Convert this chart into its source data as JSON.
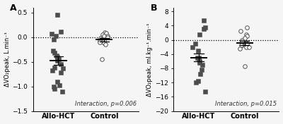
{
  "panel_A": {
    "label": "A",
    "ylabel": "ΔVO₂peak, L.min⁻¹",
    "allo_hct": [
      0.45,
      0.12,
      0.07,
      0.02,
      -0.05,
      -0.27,
      -0.32,
      -0.38,
      -0.4,
      -0.45,
      -0.48,
      -0.55,
      -0.62,
      -0.63,
      -0.68,
      -0.72,
      -0.9,
      -0.97,
      -1.0,
      -1.05,
      -1.1
    ],
    "control": [
      0.1,
      0.08,
      0.05,
      0.03,
      0.02,
      0.0,
      -0.02,
      -0.05,
      -0.07,
      -0.08,
      -0.1,
      -0.12,
      -0.15,
      -0.45
    ],
    "allo_mean": -0.47,
    "allo_sem": 0.085,
    "ctrl_mean": -0.05,
    "ctrl_sem": 0.035,
    "ylim": [
      -1.5,
      0.6
    ],
    "yticks": [
      -1.5,
      -1.0,
      -0.5,
      0.0,
      0.5
    ],
    "interaction_text": "Interaction, p=0.006",
    "allo_x": 1,
    "ctrl_x": 2,
    "xlim": [
      0.45,
      2.75
    ]
  },
  "panel_B": {
    "label": "B",
    "ylabel": "ΔVO₂peak, ml.kg⁻¹.min⁻¹",
    "allo_hct": [
      5.5,
      3.5,
      3.0,
      1.5,
      -1.0,
      -2.0,
      -3.0,
      -5.0,
      -5.0,
      -5.5,
      -6.0,
      -6.5,
      -7.0,
      -8.5,
      -9.5,
      -11.5,
      -12.0,
      -14.5
    ],
    "control": [
      3.5,
      2.5,
      1.5,
      1.0,
      0.5,
      0.0,
      -0.5,
      -1.0,
      -1.5,
      -1.5,
      -2.0,
      -2.0,
      -2.5,
      -7.5
    ],
    "allo_mean": -5.0,
    "allo_sem": 1.1,
    "ctrl_mean": -0.8,
    "ctrl_sem": 0.6,
    "ylim": [
      -20,
      9
    ],
    "yticks": [
      -20,
      -16,
      -12,
      -8,
      -4,
      0,
      4,
      8
    ],
    "interaction_text": "Interaction, p=0.015",
    "allo_x": 1,
    "ctrl_x": 2,
    "xlim": [
      0.45,
      2.75
    ]
  },
  "marker_color_filled": "#4d4d4d",
  "marker_color_open": "#ffffff",
  "marker_edge_color": "#4d4d4d",
  "background_color": "#f5f5f5",
  "fontsize_ylabel": 6.0,
  "fontsize_tick": 6.5,
  "fontsize_interaction": 6.0,
  "fontsize_xlabel": 7.0,
  "fontsize_panel_label": 9,
  "xlabel_allo": "Allo-HCT",
  "xlabel_ctrl": "Control"
}
